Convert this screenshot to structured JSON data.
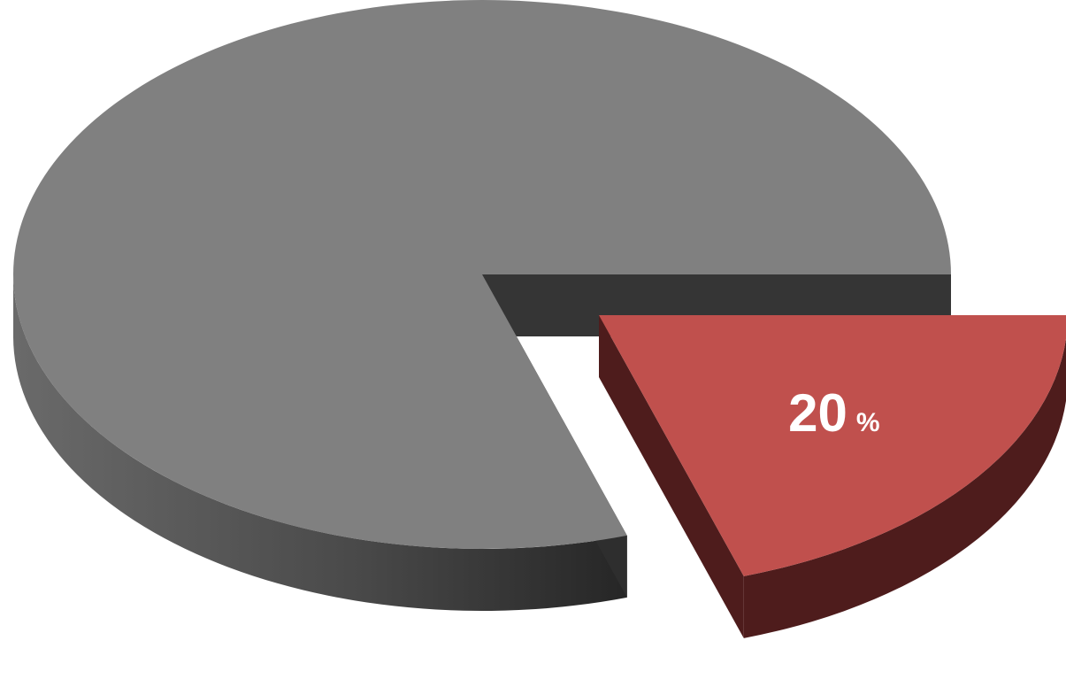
{
  "chart_data": {
    "type": "pie",
    "style": "3d-exploded",
    "slices": [
      {
        "label": "",
        "value": 80,
        "color": "#808080",
        "exploded": false,
        "show_label": false
      },
      {
        "label": "20 %",
        "value": 20,
        "color": "#c0504d",
        "exploded": true,
        "show_label": true
      }
    ],
    "colors": {
      "gray_top": "#808080",
      "gray_side_light": "#6e6e6e",
      "gray_side_dark": "#2e2e2e",
      "gray_cut": "#353535",
      "red_top": "#c0504d",
      "red_side": "#4e1c1c",
      "label": "#ffffff"
    }
  }
}
